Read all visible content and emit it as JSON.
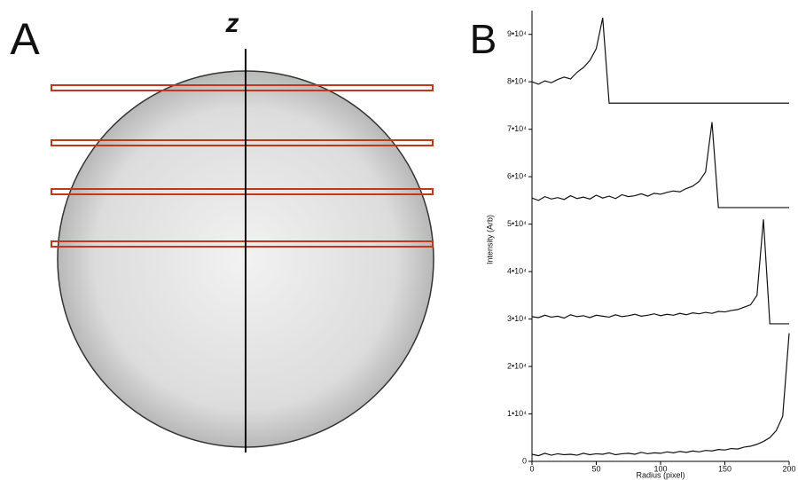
{
  "panel_a": {
    "label": "A",
    "axis_label": "z"
  },
  "chart_data": {
    "type": "line",
    "panel_label": "B",
    "x_label": "Radius (pixel)",
    "y_label": "Intensity (Arb)",
    "x": [
      0,
      5,
      10,
      15,
      20,
      25,
      30,
      35,
      40,
      45,
      50,
      55,
      60,
      65,
      70,
      75,
      80,
      85,
      90,
      95,
      100,
      105,
      110,
      115,
      120,
      125,
      130,
      135,
      140,
      145,
      150,
      155,
      160,
      165,
      170,
      175,
      180,
      185,
      190,
      195,
      200
    ],
    "series": [
      {
        "color": "#111111",
        "values": [
          80000,
          79500,
          80200,
          79800,
          80500,
          81000,
          80600,
          82000,
          83000,
          84500,
          87000,
          93500,
          75500,
          75500,
          75500,
          75500,
          75500,
          75500,
          75500,
          75500,
          75500,
          75500,
          75500,
          75500,
          75500,
          75500,
          75500,
          75500,
          75500,
          75500,
          75500,
          75500,
          75500,
          75500,
          75500,
          75500,
          75500,
          75500,
          75500,
          75500,
          75500
        ]
      },
      {
        "color": "#111111",
        "values": [
          55500,
          55000,
          55800,
          55300,
          55600,
          55200,
          56000,
          55400,
          55700,
          55300,
          56100,
          55500,
          55900,
          55400,
          56200,
          55800,
          56000,
          56400,
          55900,
          56500,
          56300,
          56700,
          57000,
          56800,
          57500,
          58000,
          59000,
          61000,
          71500,
          53500,
          53500,
          53500,
          53500,
          53500,
          53500,
          53500,
          53500,
          53500,
          53500,
          53500,
          53500
        ]
      },
      {
        "color": "#111111",
        "values": [
          30500,
          30300,
          30800,
          30400,
          30600,
          30200,
          30900,
          30500,
          30700,
          30300,
          30800,
          30600,
          30400,
          30900,
          30500,
          30700,
          31000,
          30600,
          30800,
          31100,
          30700,
          31000,
          30800,
          31200,
          30900,
          31300,
          31100,
          31400,
          31200,
          31600,
          31500,
          31800,
          32000,
          32500,
          33000,
          35000,
          51000,
          29000,
          29000,
          29000,
          29000
        ]
      },
      {
        "color": "#111111",
        "values": [
          1500,
          1200,
          1700,
          1300,
          1600,
          1400,
          1500,
          1300,
          1700,
          1400,
          1600,
          1500,
          1800,
          1400,
          1600,
          1700,
          1500,
          1900,
          1600,
          1800,
          1700,
          2000,
          1800,
          2100,
          1900,
          2200,
          2000,
          2300,
          2200,
          2500,
          2400,
          2700,
          2600,
          3000,
          3200,
          3600,
          4200,
          5000,
          6500,
          9500,
          27000
        ]
      }
    ],
    "xlim": [
      0,
      200
    ],
    "xticks": [
      0,
      50,
      100,
      150,
      200
    ],
    "ylim": [
      0,
      95000
    ],
    "yticks": [
      {
        "value": 0,
        "label": "0"
      },
      {
        "value": 10000,
        "label": "1•10⁴"
      },
      {
        "value": 20000,
        "label": "2•10⁴"
      },
      {
        "value": 30000,
        "label": "3•10⁴"
      },
      {
        "value": 40000,
        "label": "4•10⁴"
      },
      {
        "value": 50000,
        "label": "5•10⁴"
      },
      {
        "value": 60000,
        "label": "6•10⁴"
      },
      {
        "value": 70000,
        "label": "7•10⁴"
      },
      {
        "value": 80000,
        "label": "8•10⁴"
      },
      {
        "value": 90000,
        "label": "9•10⁴"
      }
    ],
    "grid": false
  }
}
